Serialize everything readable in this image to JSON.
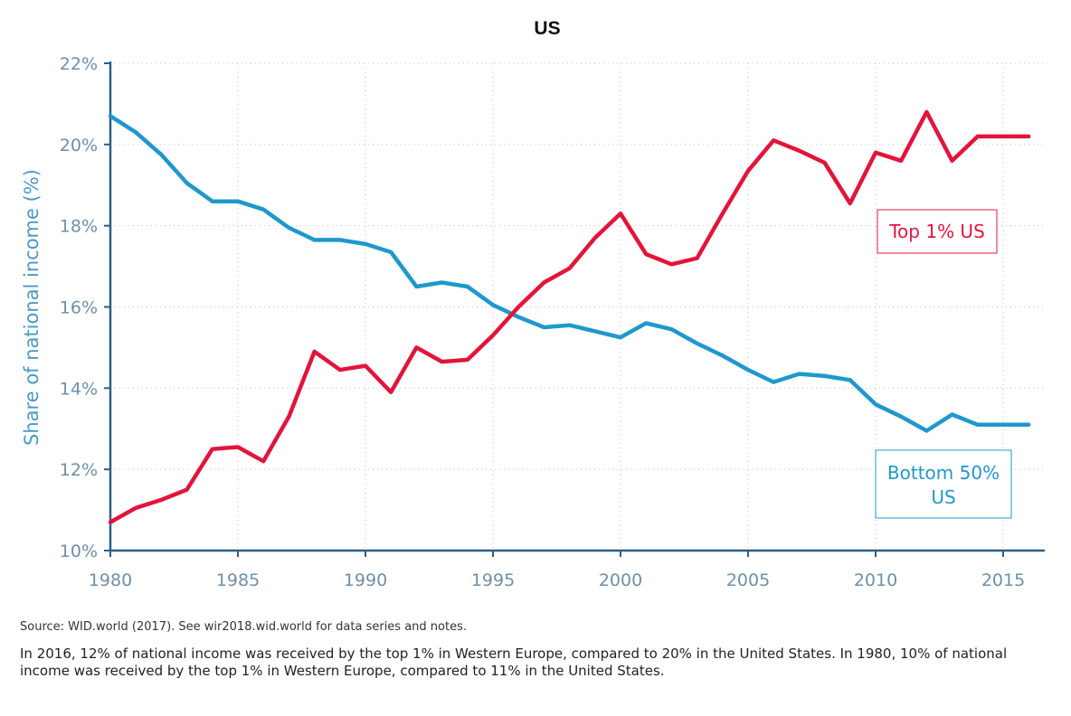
{
  "chart_data": {
    "type": "line",
    "title": "US",
    "ylabel": "Share of national income (%)",
    "xlabel": "",
    "xlim": [
      1980,
      2016
    ],
    "ylim": [
      10,
      22
    ],
    "x_ticks": [
      1980,
      1985,
      1990,
      1995,
      2000,
      2005,
      2010,
      2015
    ],
    "y_ticks": [
      10,
      12,
      14,
      16,
      18,
      20,
      22
    ],
    "y_tick_labels": [
      "10%",
      "12%",
      "14%",
      "16%",
      "18%",
      "20%",
      "22%"
    ],
    "grid": true,
    "x": [
      1980,
      1981,
      1982,
      1983,
      1984,
      1985,
      1986,
      1987,
      1988,
      1989,
      1990,
      1991,
      1992,
      1993,
      1994,
      1995,
      1996,
      1997,
      1998,
      1999,
      2000,
      2001,
      2002,
      2003,
      2004,
      2005,
      2006,
      2007,
      2008,
      2009,
      2010,
      2011,
      2012,
      2013,
      2014,
      2015,
      2016
    ],
    "series": [
      {
        "name": "Top 1% US",
        "color": "#e3143c",
        "values": [
          10.7,
          11.05,
          11.25,
          11.5,
          12.5,
          12.55,
          12.2,
          13.3,
          14.9,
          14.45,
          14.55,
          13.9,
          15.0,
          14.65,
          14.7,
          15.3,
          16.0,
          16.6,
          16.95,
          17.7,
          18.3,
          17.3,
          17.05,
          17.2,
          18.3,
          19.35,
          20.1,
          19.85,
          19.55,
          18.55,
          19.8,
          19.6,
          20.8,
          19.6,
          20.2,
          20.2,
          20.2
        ]
      },
      {
        "name": "Bottom 50% US",
        "color": "#1f98cc",
        "values": [
          20.7,
          20.3,
          19.75,
          19.05,
          18.6,
          18.6,
          18.4,
          17.95,
          17.65,
          17.65,
          17.55,
          17.35,
          16.5,
          16.6,
          16.5,
          16.05,
          15.75,
          15.5,
          15.55,
          15.4,
          15.25,
          15.6,
          15.45,
          15.1,
          14.8,
          14.45,
          14.15,
          14.35,
          14.3,
          14.2,
          13.6,
          13.3,
          12.95,
          13.35,
          13.1,
          13.1,
          13.1
        ]
      }
    ],
    "legend": [
      {
        "label": "Top 1% US",
        "color": "#e3143c"
      },
      {
        "label_line1": "Bottom 50%",
        "label_line2": "US",
        "color": "#1f98cc"
      }
    ]
  },
  "source": "Source:  WID.world (2017). See wir2018.wid.world for data series and notes.",
  "note": "In 2016, 12% of national income was received by the top 1% in Western Europe, compared to 20% in the United States. In 1980, 10% of national income was received by the top 1% in Western Europe, compared to 11% in the United States."
}
